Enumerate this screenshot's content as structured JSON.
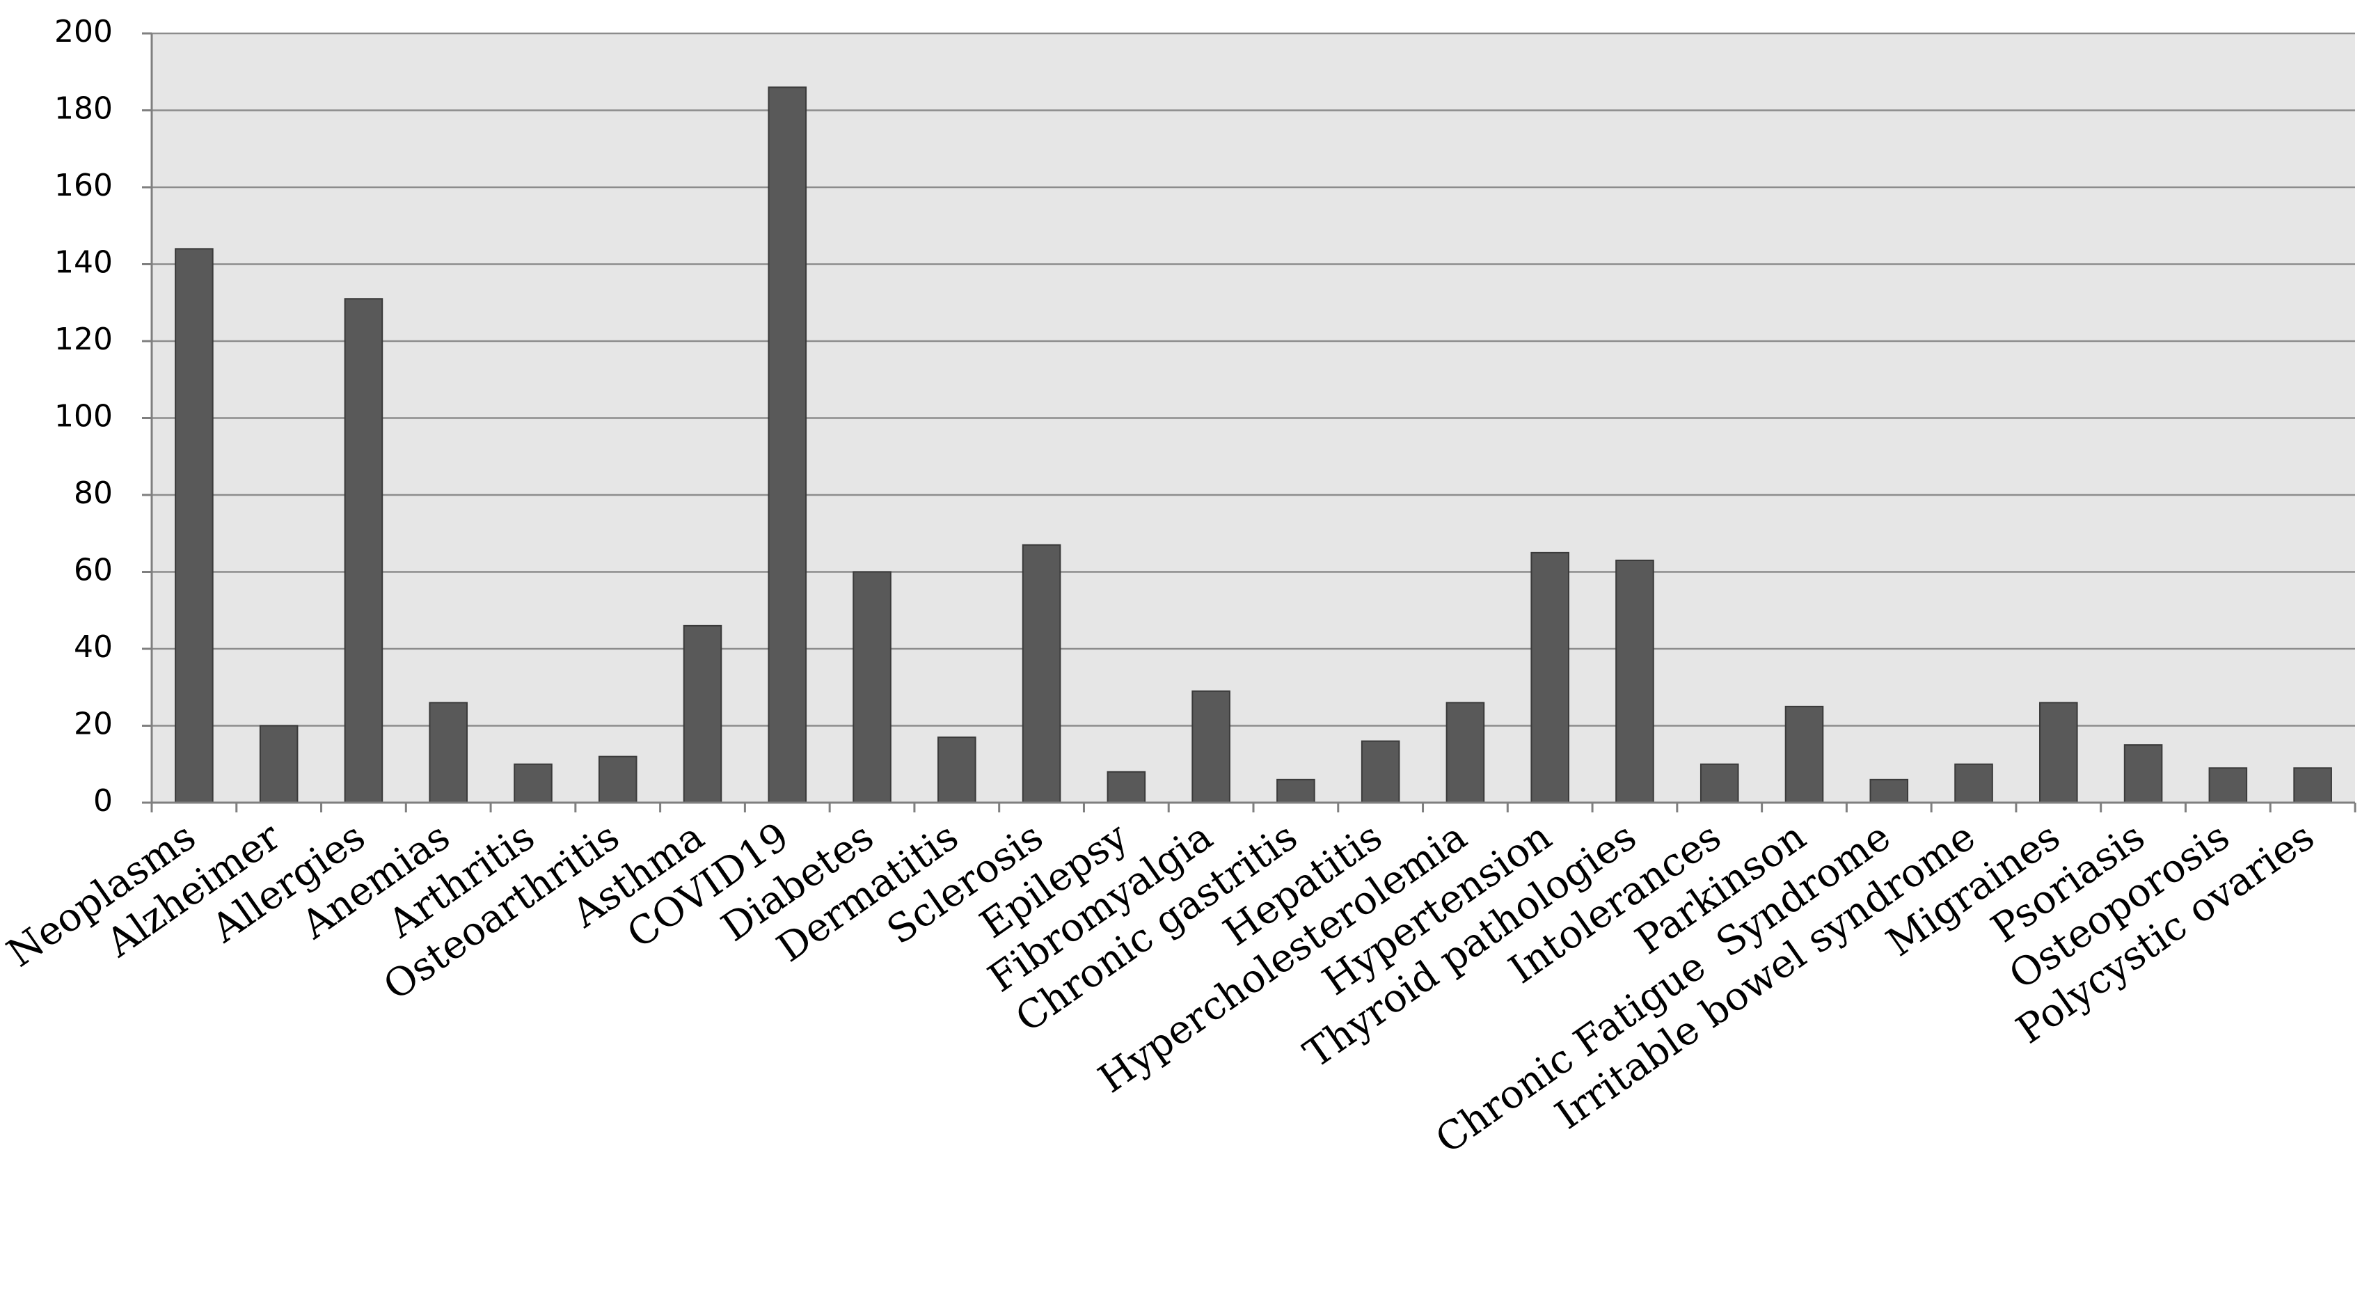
{
  "chart_data": {
    "type": "bar",
    "categories": [
      "Neoplasms",
      "Alzheimer",
      "Allergies",
      "Anemias",
      "Arthritis",
      "Osteoarthritis",
      "Asthma",
      "COVID19",
      "Diabetes",
      "Dermatitis",
      "Sclerosis",
      "Epilepsy",
      "Fibromyalgia",
      "Chronic gastritis",
      "Hepatitis",
      "Hypercholesterolemia",
      "Hypertension",
      "Thyroid pathologies",
      "Intolerances",
      "Parkinson",
      "Chronic Fatigue  Syndrome",
      "Irritable bowel syndrome",
      "Migraines",
      "Psoriasis",
      "Osteoporosis",
      "Polycystic ovaries"
    ],
    "values": [
      144,
      20,
      131,
      26,
      10,
      12,
      46,
      186,
      60,
      17,
      67,
      8,
      29,
      6,
      16,
      26,
      65,
      63,
      10,
      25,
      6,
      10,
      26,
      15,
      9,
      9
    ],
    "ylim": [
      0,
      200
    ],
    "yticks": [
      "0",
      "20",
      "40",
      "60",
      "80",
      "100",
      "120",
      "140",
      "160",
      "180",
      "200"
    ],
    "grid": true,
    "legend": "none",
    "colors": {
      "bar": "#595959",
      "plot_background": "#e6e6e6",
      "grid": "#8c8c8c"
    }
  }
}
